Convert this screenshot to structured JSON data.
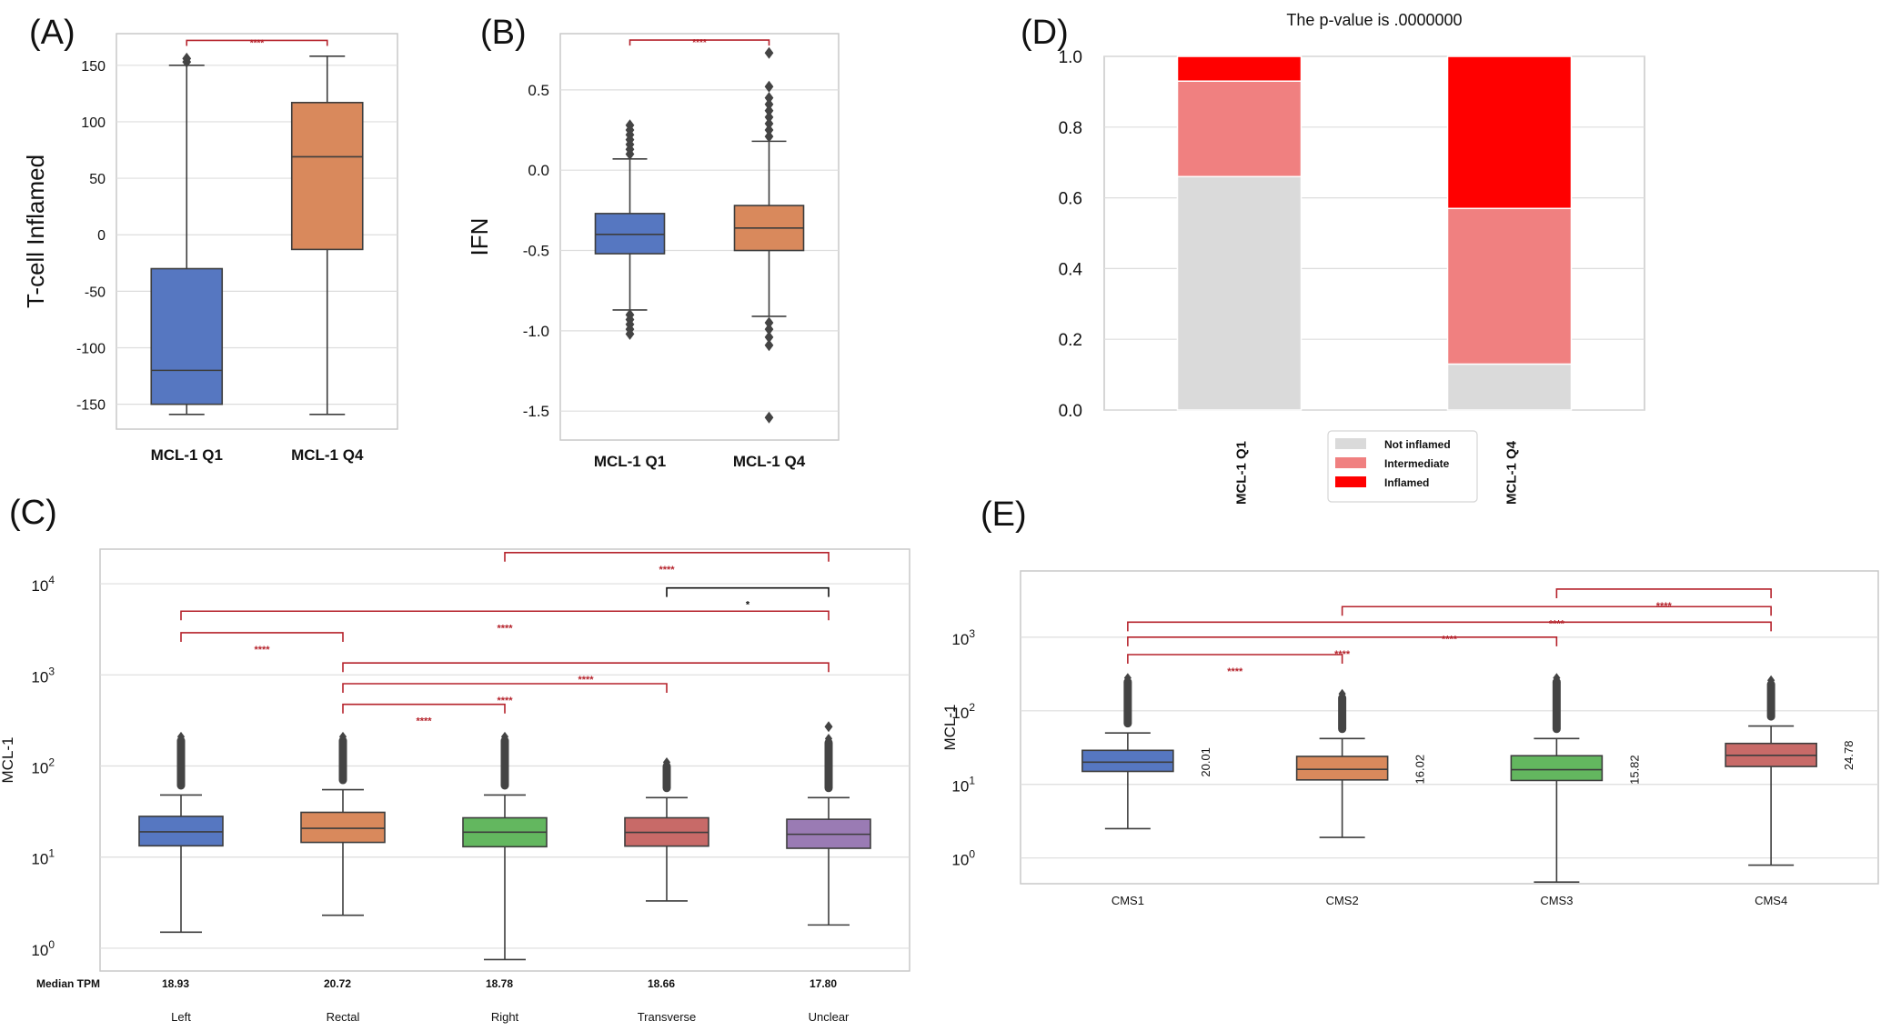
{
  "colors": {
    "blue": "#5677c1",
    "orange": "#d9895c",
    "green": "#63b75f",
    "red_box": "#c86a68",
    "purple": "#9a7bb4",
    "sig": "#b5222b",
    "sig_black": "#111111",
    "frame": "#c9c9c9",
    "grid": "#dddddd",
    "not_inflamed": "#dadada",
    "intermediate": "#f08080",
    "inflamed": "#ff0000"
  },
  "chart_data": [
    {
      "panel": "(A)",
      "type": "box",
      "ylabel": "T-cell Inflamed",
      "ylim": [
        -172,
        178
      ],
      "yticks": [
        150,
        100,
        50,
        0,
        -50,
        -100,
        -150
      ],
      "ytick_labels": [
        "150",
        "100",
        "50",
        "0",
        "-50",
        "-100",
        "-150"
      ],
      "categories": [
        "MCL-1 Q1",
        "MCL-1 Q4"
      ],
      "boxes": [
        {
          "category": "MCL-1 Q1",
          "color": "blue",
          "whisker_low": -159,
          "q1": -150,
          "median": -120,
          "q3": -30,
          "whisker_high": 150,
          "outliers": [
            153,
            156
          ]
        },
        {
          "category": "MCL-1 Q4",
          "color": "orange",
          "whisker_low": -159,
          "q1": -13,
          "median": 69,
          "q3": 117,
          "whisker_high": 158,
          "outliers": []
        }
      ],
      "significance": [
        {
          "from": 0,
          "to": 1,
          "y": 172,
          "label": "****",
          "color": "sig"
        }
      ]
    },
    {
      "panel": "(B)",
      "type": "box",
      "ylabel": "IFN",
      "ylim": [
        -1.68,
        0.85
      ],
      "yticks": [
        0.5,
        0.0,
        -0.5,
        -1.0,
        -1.5
      ],
      "ytick_labels": [
        "0.5",
        "0.0",
        "-0.5",
        "-1.0",
        "-1.5"
      ],
      "categories": [
        "MCL-1 Q1",
        "MCL-1 Q4"
      ],
      "boxes": [
        {
          "category": "MCL-1 Q1",
          "color": "blue",
          "whisker_low": -0.87,
          "q1": -0.52,
          "median": -0.4,
          "q3": -0.27,
          "whisker_high": 0.07,
          "outliers": [
            0.28,
            0.25,
            0.22,
            0.19,
            0.16,
            0.13,
            0.1,
            -0.9,
            -0.93,
            -0.96,
            -0.99,
            -1.02
          ]
        },
        {
          "category": "MCL-1 Q4",
          "color": "orange",
          "whisker_low": -0.91,
          "q1": -0.5,
          "median": -0.36,
          "q3": -0.22,
          "whisker_high": 0.18,
          "outliers": [
            0.73,
            0.52,
            0.45,
            0.41,
            0.37,
            0.33,
            0.29,
            0.25,
            0.21,
            -0.95,
            -0.99,
            -1.04,
            -1.09,
            -1.54
          ]
        }
      ],
      "significance": [
        {
          "from": 0,
          "to": 1,
          "y": 0.81,
          "label": "****",
          "color": "sig"
        }
      ]
    },
    {
      "panel": "(C)",
      "type": "box",
      "log_scale": true,
      "ylabel": "MCL-1",
      "ylim_log10": [
        -0.25,
        4.38
      ],
      "yticks_log10": [
        4,
        3,
        2,
        1,
        0
      ],
      "ytick_labels": [
        "10^4",
        "10^3",
        "10^2",
        "10^1",
        "10^0"
      ],
      "categories": [
        "Left",
        "Rectal",
        "Right",
        "Transverse",
        "Unclear"
      ],
      "median_label": "Median TPM",
      "medians_text": [
        "18.93",
        "20.72",
        "18.78",
        "18.66",
        "17.80"
      ],
      "boxes": [
        {
          "category": "Left",
          "color": "blue",
          "whisker_low": 1.5,
          "q1": 13.3,
          "median": 18.93,
          "q3": 28,
          "whisker_high": 48,
          "outlier_high": 210
        },
        {
          "category": "Rectal",
          "color": "orange",
          "whisker_low": 2.3,
          "q1": 14.5,
          "median": 20.72,
          "q3": 31,
          "whisker_high": 55,
          "outlier_high": 210
        },
        {
          "category": "Right",
          "color": "green",
          "whisker_low": 0.75,
          "q1": 13.0,
          "median": 18.78,
          "q3": 27,
          "whisker_high": 48,
          "outlier_high": 210
        },
        {
          "category": "Transverse",
          "color": "red_box",
          "whisker_low": 3.3,
          "q1": 13.2,
          "median": 18.66,
          "q3": 27,
          "whisker_high": 45,
          "outlier_high": 110
        },
        {
          "category": "Unclear",
          "color": "purple",
          "whisker_low": 1.8,
          "q1": 12.5,
          "median": 17.8,
          "q3": 26,
          "whisker_high": 45,
          "outlier_high": 200,
          "extra_outlier": 270
        }
      ],
      "significance": [
        {
          "from": 2,
          "to": 4,
          "y": 22000,
          "label": "****",
          "color": "sig"
        },
        {
          "from": 3,
          "to": 4,
          "y": 9000,
          "label": "*",
          "color": "sig_black"
        },
        {
          "from": 0,
          "to": 4,
          "y": 5000,
          "label": "****",
          "color": "sig"
        },
        {
          "from": 0,
          "to": 1,
          "y": 2900,
          "label": "****",
          "color": "sig"
        },
        {
          "from": 1,
          "to": 4,
          "y": 1350,
          "label": "****",
          "color": "sig"
        },
        {
          "from": 1,
          "to": 3,
          "y": 800,
          "label": "****",
          "color": "sig"
        },
        {
          "from": 1,
          "to": 2,
          "y": 475,
          "label": "****",
          "color": "sig"
        }
      ]
    },
    {
      "panel": "(D)",
      "type": "stacked_bar",
      "title": "The p-value is  .0000000",
      "ylim": [
        0,
        1.0
      ],
      "yticks": [
        0.0,
        0.2,
        0.4,
        0.6,
        0.8,
        1.0
      ],
      "ytick_labels": [
        "0.0",
        "0.2",
        "0.4",
        "0.6",
        "0.8",
        "1.0"
      ],
      "categories": [
        "MCL-1 Q1",
        "MCL-1 Q4"
      ],
      "series": [
        {
          "name": "Not inflamed",
          "color": "not_inflamed",
          "values": [
            0.66,
            0.13
          ]
        },
        {
          "name": "Intermediate",
          "color": "intermediate",
          "values": [
            0.27,
            0.44
          ]
        },
        {
          "name": "Inflamed",
          "color": "inflamed",
          "values": [
            0.07,
            0.43
          ]
        }
      ],
      "legend_position": "bottom-center"
    },
    {
      "panel": "(E)",
      "type": "box",
      "log_scale": true,
      "ylabel": "MCL-1",
      "ylim_log10": [
        -0.35,
        3.9
      ],
      "yticks_log10": [
        3,
        2,
        1,
        0
      ],
      "ytick_labels": [
        "10^3",
        "10^2",
        "10^1",
        "10^0"
      ],
      "categories": [
        "CMS1",
        "CMS2",
        "CMS3",
        "CMS4"
      ],
      "median_values_text": [
        "20.01",
        "16.02",
        "15.82",
        "24.78"
      ],
      "boxes": [
        {
          "category": "CMS1",
          "color": "blue",
          "whisker_low": 2.5,
          "q1": 15,
          "median": 20.01,
          "q3": 29,
          "whisker_high": 50,
          "outlier_high": 280
        },
        {
          "category": "CMS2",
          "color": "orange",
          "whisker_low": 1.9,
          "q1": 11.5,
          "median": 16.02,
          "q3": 24,
          "whisker_high": 42,
          "outlier_high": 170
        },
        {
          "category": "CMS3",
          "color": "green",
          "whisker_low": 0.47,
          "q1": 11.3,
          "median": 15.82,
          "q3": 24.5,
          "whisker_high": 42,
          "outlier_high": 280
        },
        {
          "category": "CMS4",
          "color": "red_box",
          "whisker_low": 0.8,
          "q1": 17.5,
          "median": 24.78,
          "q3": 36,
          "whisker_high": 62,
          "outlier_high": 260
        }
      ],
      "significance": [
        {
          "from": 2,
          "to": 3,
          "y": 4500,
          "label": "****",
          "color": "sig"
        },
        {
          "from": 1,
          "to": 3,
          "y": 2600,
          "label": "****",
          "color": "sig"
        },
        {
          "from": 0,
          "to": 3,
          "y": 1600,
          "label": "****",
          "color": "sig"
        },
        {
          "from": 0,
          "to": 2,
          "y": 1000,
          "label": "****",
          "color": "sig"
        },
        {
          "from": 0,
          "to": 1,
          "y": 580,
          "label": "****",
          "color": "sig"
        }
      ]
    }
  ],
  "panel_labels": [
    "(A)",
    "(B)",
    "(C)",
    "(D)",
    "(E)"
  ]
}
